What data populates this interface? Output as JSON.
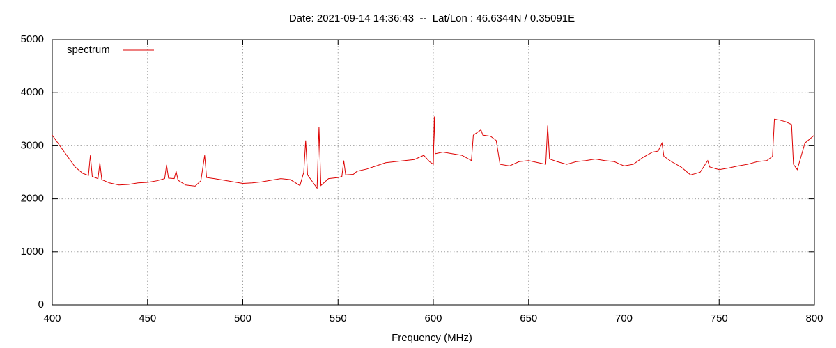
{
  "chart_data": {
    "type": "line",
    "title": "Date: 2021-09-14 14:36:43  --  Lat/Lon : 46.6344N / 0.35091E",
    "x_label": "Frequency (MHz)",
    "xlim": [
      400,
      800
    ],
    "xticks": [
      400,
      450,
      500,
      550,
      600,
      650,
      700,
      750,
      800
    ],
    "ylim": [
      0,
      5000
    ],
    "yticks": [
      0,
      1000,
      2000,
      3000,
      4000,
      5000
    ],
    "grid": true,
    "legend": "upper-left",
    "x": [
      400,
      404,
      408,
      412,
      416,
      419,
      420,
      421,
      424,
      425,
      426,
      430,
      435,
      440,
      445,
      450,
      455,
      459,
      460,
      461,
      464,
      465,
      466,
      470,
      475,
      478,
      480,
      481,
      485,
      490,
      495,
      500,
      505,
      510,
      515,
      520,
      525,
      530,
      532,
      533,
      534,
      537,
      539,
      540,
      541,
      545,
      550,
      552,
      553,
      554,
      558,
      560,
      565,
      570,
      575,
      580,
      585,
      590,
      595,
      598,
      600,
      600.5,
      601,
      605,
      610,
      615,
      620,
      621,
      625,
      626,
      630,
      633,
      635,
      640,
      645,
      650,
      655,
      659,
      660,
      661,
      665,
      670,
      675,
      680,
      685,
      690,
      695,
      700,
      705,
      710,
      715,
      718,
      720,
      721,
      725,
      730,
      735,
      740,
      744,
      745,
      750,
      755,
      760,
      765,
      770,
      775,
      778,
      779,
      782,
      785,
      788,
      789,
      791,
      793,
      795,
      800
    ],
    "series": [
      {
        "name": "spectrum",
        "color": "#dd0000",
        "values": [
          3200,
          3000,
          2800,
          2600,
          2480,
          2440,
          2820,
          2420,
          2380,
          2680,
          2360,
          2300,
          2260,
          2270,
          2300,
          2310,
          2340,
          2380,
          2640,
          2390,
          2380,
          2520,
          2350,
          2260,
          2240,
          2340,
          2820,
          2400,
          2380,
          2350,
          2320,
          2290,
          2300,
          2320,
          2350,
          2380,
          2360,
          2250,
          2500,
          3100,
          2450,
          2300,
          2200,
          3350,
          2250,
          2380,
          2400,
          2420,
          2720,
          2450,
          2460,
          2520,
          2560,
          2620,
          2680,
          2700,
          2720,
          2740,
          2820,
          2700,
          2650,
          3550,
          2850,
          2880,
          2850,
          2820,
          2720,
          3200,
          3300,
          3200,
          3180,
          3100,
          2650,
          2620,
          2700,
          2720,
          2680,
          2650,
          3380,
          2750,
          2700,
          2650,
          2700,
          2720,
          2750,
          2720,
          2700,
          2620,
          2650,
          2780,
          2880,
          2900,
          3050,
          2800,
          2700,
          2600,
          2450,
          2500,
          2720,
          2600,
          2550,
          2580,
          2620,
          2650,
          2700,
          2720,
          2800,
          3500,
          3480,
          3450,
          3400,
          2650,
          2550,
          2800,
          3050,
          3200
        ]
      }
    ]
  }
}
